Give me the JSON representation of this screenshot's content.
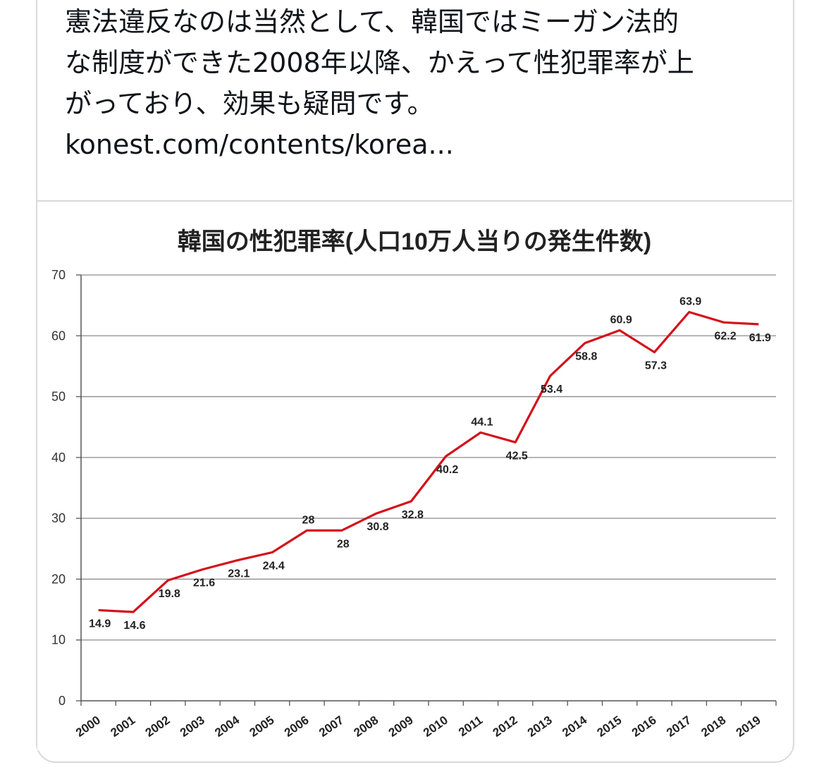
{
  "tweet": {
    "lines": [
      "憲法違反なのは当然として、韓国ではミーガン法的",
      "な制度ができた2008年以降、かえって性犯罪率が上",
      "がっており、効果も疑問です。"
    ],
    "link": "konest.com/contents/korea..."
  },
  "chart_data": {
    "type": "line",
    "title": "韓国の性犯罪率(人口10万人当りの発生件数)",
    "x": [
      "2000",
      "2001",
      "2002",
      "2003",
      "2004",
      "2005",
      "2006",
      "2007",
      "2008",
      "2009",
      "2010",
      "2011",
      "2012",
      "2013",
      "2014",
      "2015",
      "2016",
      "2017",
      "2018",
      "2019"
    ],
    "series": [
      {
        "values": [
          14.9,
          14.6,
          19.8,
          21.6,
          23.1,
          24.4,
          28,
          28,
          30.8,
          32.8,
          40.2,
          44.1,
          42.5,
          53.4,
          58.8,
          60.9,
          57.3,
          63.9,
          62.2,
          61.9
        ]
      }
    ],
    "ylim": [
      0,
      70
    ],
    "yticks": [
      0,
      10,
      20,
      30,
      40,
      50,
      60,
      70
    ],
    "grid": true,
    "line_color": "#d4101a"
  }
}
